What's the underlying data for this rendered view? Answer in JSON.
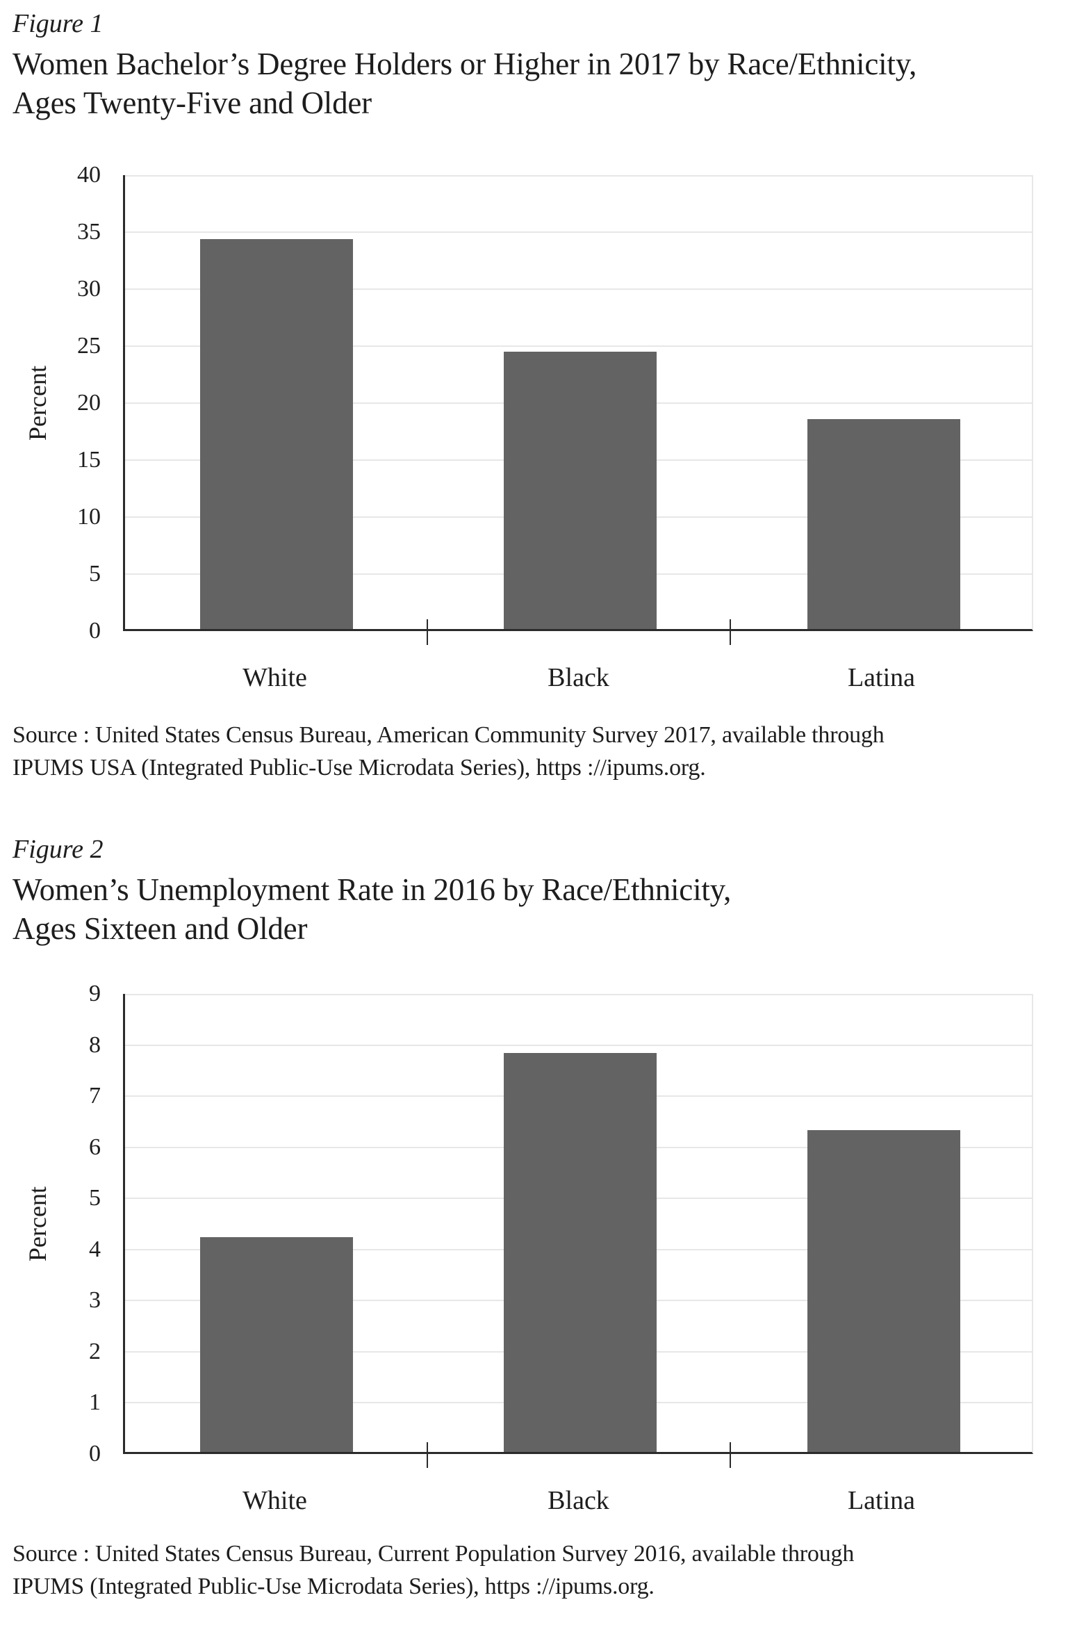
{
  "figure1": {
    "label": "Figure 1",
    "title_lines": [
      "Women Bachelor’s Degree Holders or Higher in 2017 by Race/Ethnicity,",
      "Ages Twenty-Five and Older"
    ],
    "source_lines": [
      "Source : United States Census Bureau, American Community Survey 2017, available through",
      "IPUMS USA (Integrated Public-Use Microdata Series), https ://ipums.org."
    ]
  },
  "figure2": {
    "label": "Figure 2",
    "title_lines": [
      "Women’s Unemployment Rate in 2016 by Race/Ethnicity,",
      "Ages Sixteen and Older"
    ],
    "source_lines": [
      "Source : United States Census Bureau, Current Population Survey 2016, available through",
      "IPUMS (Integrated Public-Use Microdata Series), https ://ipums.org."
    ]
  },
  "chart_data": [
    {
      "type": "bar",
      "title": "Women Bachelor’s Degree Holders or Higher in 2017 by Race/Ethnicity, Ages Twenty-Five and Older",
      "categories": [
        "White",
        "Black",
        "Latina"
      ],
      "values": [
        34.2,
        24.3,
        18.4
      ],
      "xlabel": "",
      "ylabel": "Percent",
      "ylim": [
        0,
        40
      ],
      "ytick_step": 5,
      "grid": true,
      "legend": "none",
      "bar_color": "#636363",
      "gridline_color": "#e7e7e7",
      "axis_color": "#2b2b2b",
      "text_color": "#1d1d1d"
    },
    {
      "type": "bar",
      "title": "Women’s Unemployment Rate in 2016 by Race/Ethnicity, Ages Sixteen and Older",
      "categories": [
        "White",
        "Black",
        "Latina"
      ],
      "values": [
        4.2,
        7.8,
        6.3
      ],
      "xlabel": "",
      "ylabel": "Percent",
      "ylim": [
        0,
        9
      ],
      "ytick_step": 1,
      "grid": true,
      "legend": "none",
      "bar_color": "#636363",
      "gridline_color": "#e7e7e7",
      "axis_color": "#2b2b2b",
      "text_color": "#1d1d1d"
    }
  ]
}
